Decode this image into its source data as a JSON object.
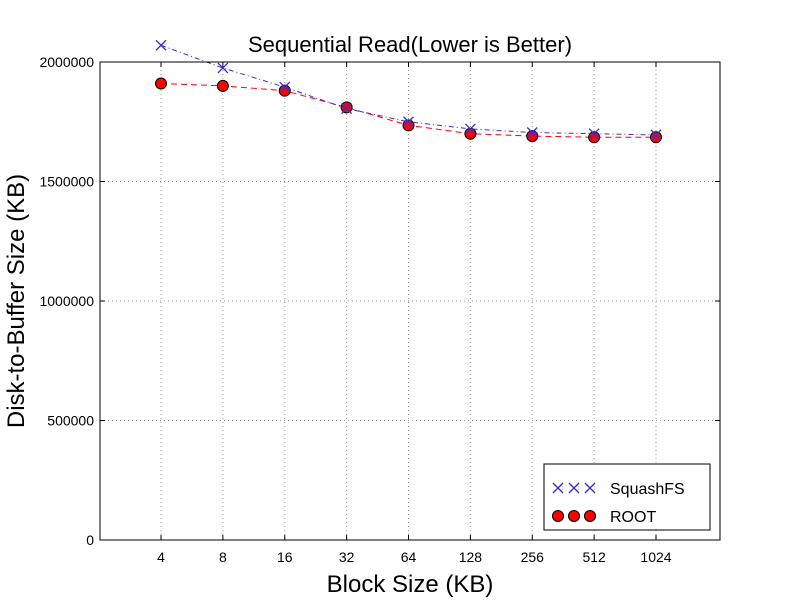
{
  "chart_data": {
    "type": "line",
    "title": "Sequential Read(Lower is Better)",
    "xlabel": "Block Size (KB)",
    "ylabel": "Disk-to-Buffer Size (KB)",
    "categories": [
      "4",
      "8",
      "16",
      "32",
      "64",
      "128",
      "256",
      "512",
      "1024"
    ],
    "ylim": [
      0,
      2000000
    ],
    "yticks": [
      0,
      500000,
      1000000,
      1500000,
      2000000
    ],
    "ytick_labels": [
      "0",
      "500000",
      "1000000",
      "1500000",
      "2000000"
    ],
    "grid": true,
    "legend_position": "bottom-right",
    "series": [
      {
        "name": "SquashFS",
        "values": [
          2070000,
          1975000,
          1895000,
          1805000,
          1750000,
          1720000,
          1705000,
          1700000,
          1695000
        ],
        "color": "#3a2fd6",
        "marker": "x",
        "line_style": "dash-dot"
      },
      {
        "name": "ROOT",
        "values": [
          1910000,
          1900000,
          1880000,
          1810000,
          1735000,
          1700000,
          1690000,
          1685000,
          1685000
        ],
        "color": "#ff0000",
        "marker": "circle",
        "line_style": "dashed"
      }
    ]
  }
}
